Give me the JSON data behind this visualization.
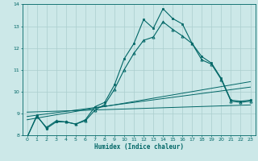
{
  "xlabel": "Humidex (Indice chaleur)",
  "xlim": [
    -0.5,
    23.5
  ],
  "ylim": [
    8,
    14
  ],
  "yticks": [
    8,
    9,
    10,
    11,
    12,
    13,
    14
  ],
  "xticks": [
    0,
    1,
    2,
    3,
    4,
    5,
    6,
    7,
    8,
    9,
    10,
    11,
    12,
    13,
    14,
    15,
    16,
    17,
    18,
    19,
    20,
    21,
    22,
    23
  ],
  "bg_color": "#cce8e8",
  "line_color": "#006666",
  "grid_color": "#aacece",
  "curve1_x": [
    0,
    1,
    2,
    3,
    4,
    5,
    6,
    7,
    8,
    9,
    10,
    11,
    12,
    13,
    14,
    15,
    16,
    17,
    18,
    19,
    20,
    21,
    22,
    23
  ],
  "curve1_y": [
    7.9,
    8.9,
    8.3,
    8.6,
    8.6,
    8.5,
    8.7,
    9.3,
    9.5,
    10.3,
    11.5,
    12.2,
    13.3,
    12.9,
    13.8,
    13.35,
    13.1,
    12.2,
    11.6,
    11.3,
    10.6,
    9.6,
    9.55,
    9.6
  ],
  "curve2_x": [
    0,
    1,
    2,
    3,
    4,
    5,
    6,
    7,
    8,
    9,
    10,
    11,
    12,
    13,
    14,
    15,
    16,
    17,
    18,
    19,
    20,
    21,
    22,
    23
  ],
  "curve2_y": [
    7.9,
    8.85,
    8.35,
    8.65,
    8.6,
    8.5,
    8.65,
    9.15,
    9.4,
    10.1,
    11.0,
    11.75,
    12.35,
    12.5,
    13.2,
    12.85,
    12.55,
    12.2,
    11.45,
    11.25,
    10.55,
    9.55,
    9.5,
    9.55
  ],
  "line1_x": [
    0,
    23
  ],
  "line1_y": [
    8.85,
    10.2
  ],
  "line2_x": [
    0,
    23
  ],
  "line2_y": [
    8.7,
    10.45
  ],
  "line3_x": [
    0,
    23
  ],
  "line3_y": [
    9.05,
    9.38
  ]
}
